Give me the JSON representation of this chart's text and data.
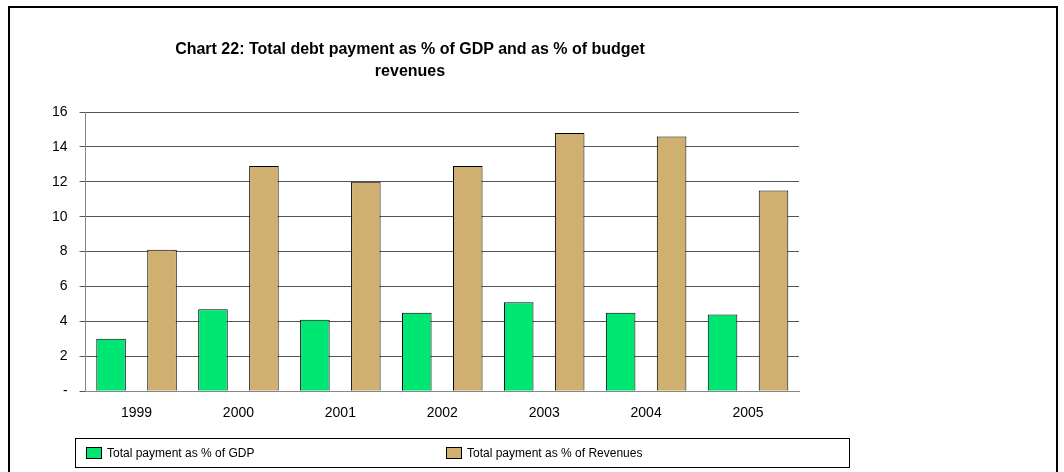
{
  "chart_data": {
    "type": "bar",
    "title": "Chart 22: Total debt payment as % of GDP and as % of budget revenues",
    "categories": [
      "1999",
      "2000",
      "2001",
      "2002",
      "2003",
      "2004",
      "2005"
    ],
    "series": [
      {
        "name": "Total  payment as % of GDP",
        "color": "#00e673",
        "values": [
          3.0,
          4.7,
          4.1,
          4.5,
          5.1,
          4.5,
          4.4
        ]
      },
      {
        "name": "Total  payment as % of Revenues",
        "color": "#cfb070",
        "values": [
          8.1,
          12.9,
          12.0,
          12.9,
          14.8,
          14.6,
          11.5
        ]
      }
    ],
    "ylim": [
      0,
      16
    ],
    "yticks": [
      {
        "value": 0,
        "label": "-"
      },
      2,
      4,
      6,
      8,
      10,
      12,
      14,
      16
    ],
    "grid": "y",
    "legend": "bottom"
  }
}
